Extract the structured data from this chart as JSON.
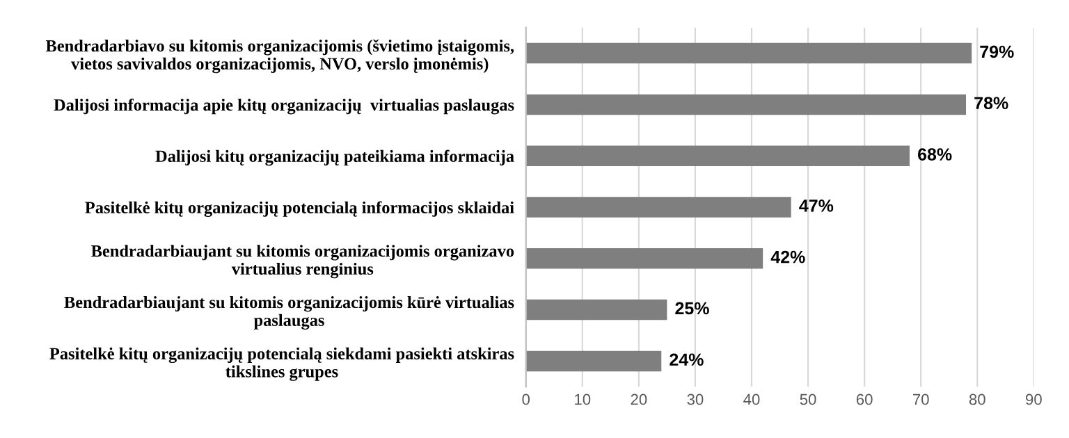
{
  "chart_data": {
    "type": "bar",
    "orientation": "horizontal",
    "categories": [
      "Bendradarbiavo su kitomis organizacijomis (švietimo įstaigomis,\nvietos savivaldos organizacijomis, NVO, verslo įmonėmis)",
      "Dalijosi informacija apie kitų organizacijų  virtualias paslaugas",
      "Dalijosi kitų organizacijų pateikiama informacija",
      "Pasitelkė kitų organizacijų potencialą informacijos sklaidai",
      "Bendradarbiaujant su kitomis organizacijomis organizavo\nvirtualius renginius",
      "Bendradarbiaujant su kitomis organizacijomis kūrė virtualias\npaslaugas",
      "Pasitelkė kitų organizacijų potencialą siekdami pasiekti atskiras\ntikslines grupes"
    ],
    "values": [
      79,
      78,
      68,
      47,
      42,
      25,
      24
    ],
    "value_labels": [
      "79%",
      "78%",
      "68%",
      "47%",
      "42%",
      "25%",
      "24%"
    ],
    "color": "#7f7f7f",
    "xlim": [
      0,
      90
    ],
    "xticks": [
      0,
      10,
      20,
      30,
      40,
      50,
      60,
      70,
      80,
      90
    ],
    "grid": "x"
  }
}
